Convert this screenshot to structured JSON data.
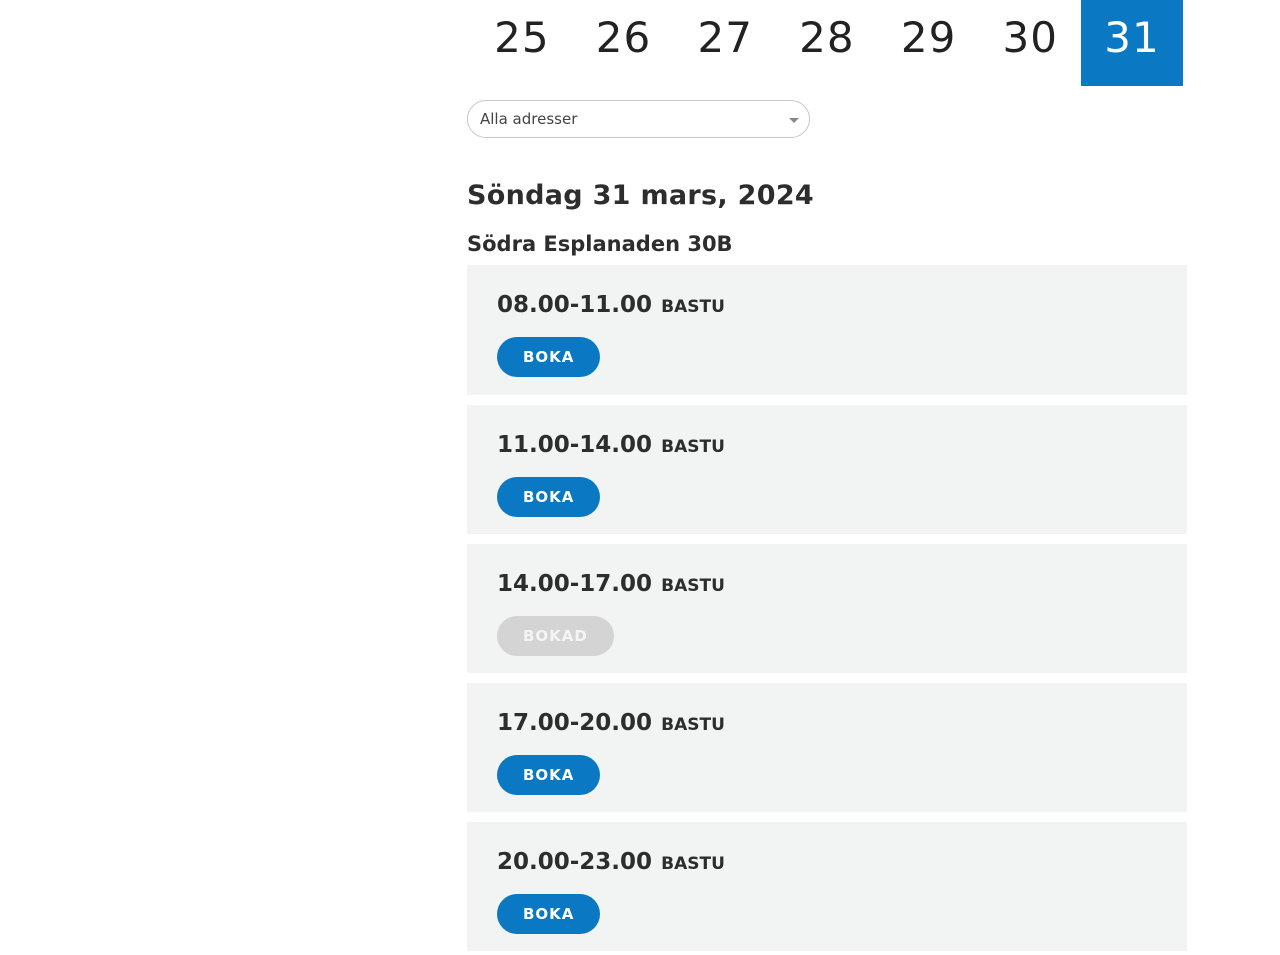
{
  "calendar": {
    "days": [
      {
        "label": "25",
        "active": false
      },
      {
        "label": "26",
        "active": false
      },
      {
        "label": "27",
        "active": false
      },
      {
        "label": "28",
        "active": false
      },
      {
        "label": "29",
        "active": false
      },
      {
        "label": "30",
        "active": false
      },
      {
        "label": "31",
        "active": true
      }
    ],
    "accent_color": "#0a78c3"
  },
  "address_filter": {
    "selected": "Alla adresser",
    "icon": "chevron-down-icon"
  },
  "date_heading": "Söndag 31 mars, 2024",
  "address_heading": "Södra Esplanaden 30B",
  "slots": [
    {
      "time": "08.00-11.00",
      "type": "BASTU",
      "button": "BOKA",
      "booked": false
    },
    {
      "time": "11.00-14.00",
      "type": "BASTU",
      "button": "BOKA",
      "booked": false
    },
    {
      "time": "14.00-17.00",
      "type": "BASTU",
      "button": "BOKAD",
      "booked": true
    },
    {
      "time": "17.00-20.00",
      "type": "BASTU",
      "button": "BOKA",
      "booked": false
    },
    {
      "time": "20.00-23.00",
      "type": "BASTU",
      "button": "BOKA",
      "booked": false
    }
  ],
  "colors": {
    "slot_background": "#f2f4f3",
    "button_primary": "#0a78c3",
    "button_disabled": "#d4d4d4"
  }
}
